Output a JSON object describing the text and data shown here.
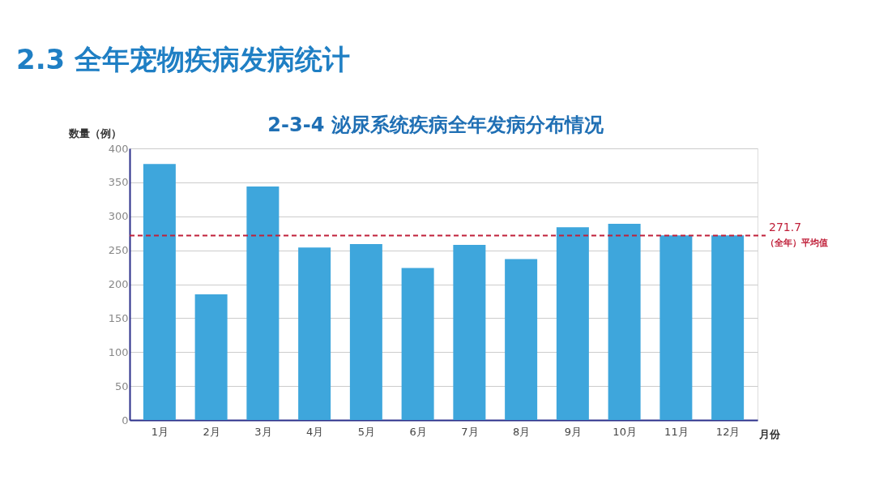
{
  "chart_data": {
    "type": "bar",
    "title": "2.3 全年宠物疾病发病统计",
    "subtitle": "2-3-4 泌尿系统疾病全年发病分布情况",
    "xlabel": "月份",
    "ylabel": "数量（例）",
    "categories": [
      "1月",
      "2月",
      "3月",
      "4月",
      "5月",
      "6月",
      "7月",
      "8月",
      "9月",
      "10月",
      "11月",
      "12月"
    ],
    "values": [
      377,
      185,
      344,
      254,
      259,
      224,
      258,
      237,
      284,
      289,
      272,
      272
    ],
    "color": "#3ea6dc",
    "ylim": [
      0,
      400
    ],
    "yticks": [
      0,
      50,
      100,
      150,
      200,
      250,
      300,
      350,
      400
    ],
    "grid": "y",
    "annotations": [
      "271.7"
    ],
    "ref_lines": [
      {
        "axis": "y",
        "value": 271.7,
        "label": "（全年）平均值",
        "color": "#c0203a",
        "line_style": "dashed"
      }
    ]
  }
}
